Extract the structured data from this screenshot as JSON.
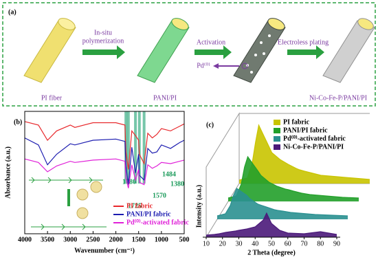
{
  "panel_a": {
    "label": "(a)",
    "items": [
      "PI fiber",
      "PANI/PI",
      "Ni-Co-Fe-P/PANI/PI"
    ],
    "steps": [
      [
        "In-situ",
        "polymerization"
      ],
      [
        "Activation"
      ],
      [
        "Electroless plating"
      ]
    ],
    "pd_label": "Pd⁽⁰⁾"
  },
  "chart_data": [
    {
      "type": "line",
      "label": "(b)",
      "x_label": "Wavenumber (cm⁻¹)",
      "y_label": "Absorbance (a.u.)",
      "x": [
        4000,
        3700,
        3500,
        3300,
        3000,
        2900,
        2500,
        2000,
        1800,
        1780,
        1725,
        1650,
        1570,
        1500,
        1484,
        1380,
        1300,
        1200,
        1100,
        1000,
        800,
        600,
        500
      ],
      "xlim": [
        4000,
        500
      ],
      "xticks": [
        4000,
        3500,
        3000,
        2500,
        2000,
        1500,
        1000,
        500
      ],
      "annotations": [
        1780,
        1725,
        1570,
        1484,
        1380
      ],
      "series": [
        {
          "name": "PI fabric",
          "color": "#e8282c",
          "values": [
            9.6,
            9.3,
            8.0,
            8.8,
            9.3,
            9.1,
            9.5,
            9.5,
            9.3,
            7.0,
            5.5,
            8.8,
            8.4,
            8.0,
            6.8,
            6.0,
            8.6,
            8.2,
            8.5,
            9.0,
            8.8,
            9.2,
            9.4
          ]
        },
        {
          "name": "PANI/PI fabric",
          "color": "#1c1cb0",
          "values": [
            8.2,
            7.6,
            5.9,
            6.8,
            7.7,
            7.6,
            8.0,
            8.1,
            7.9,
            5.8,
            4.2,
            7.4,
            5.2,
            6.8,
            5.0,
            4.6,
            7.3,
            6.9,
            7.0,
            7.6,
            7.3,
            7.8,
            8.0
          ]
        },
        {
          "name": "Pd⁽⁰⁾-activated fabric",
          "color": "#e020d8",
          "values": [
            6.4,
            6.1,
            5.3,
            5.8,
            6.2,
            6.1,
            6.3,
            6.4,
            6.2,
            4.8,
            3.9,
            5.9,
            4.6,
            5.5,
            4.4,
            4.2,
            5.9,
            5.6,
            5.8,
            6.1,
            6.0,
            6.2,
            6.3
          ]
        }
      ]
    },
    {
      "type": "area3d",
      "label": "(c)",
      "x_label": "2 Theta (degree)",
      "y_label": "Intensity (a.u.)",
      "x": [
        10,
        15,
        18,
        20,
        22,
        25,
        28,
        30,
        35,
        40,
        45,
        47,
        50,
        55,
        60,
        70,
        80,
        90
      ],
      "xlim": [
        10,
        90
      ],
      "xticks": [
        10,
        20,
        30,
        40,
        50,
        60,
        70,
        80,
        90
      ],
      "series": [
        {
          "name": "PI fabric",
          "color": "#c9c400",
          "values": [
            5,
            8,
            30,
            60,
            85,
            70,
            55,
            45,
            35,
            28,
            22,
            20,
            18,
            15,
            12,
            10,
            8,
            6
          ]
        },
        {
          "name": "PANI/PI fabric",
          "color": "#22a02a",
          "values": [
            5,
            8,
            25,
            50,
            65,
            55,
            45,
            38,
            28,
            22,
            18,
            17,
            15,
            12,
            10,
            8,
            6,
            5
          ]
        },
        {
          "name": "Pd⁽⁰⁾-activated fabric",
          "color": "#2a9090",
          "values": [
            5,
            8,
            20,
            35,
            45,
            40,
            35,
            30,
            22,
            18,
            14,
            13,
            12,
            10,
            9,
            7,
            6,
            5
          ]
        },
        {
          "name": "Ni-Co-Fe-P/PANI/PI",
          "color": "#4b1a7a",
          "values": [
            3,
            4,
            5,
            6,
            7,
            8,
            9,
            10,
            12,
            15,
            25,
            35,
            20,
            10,
            6,
            5,
            8,
            4
          ]
        }
      ]
    }
  ]
}
